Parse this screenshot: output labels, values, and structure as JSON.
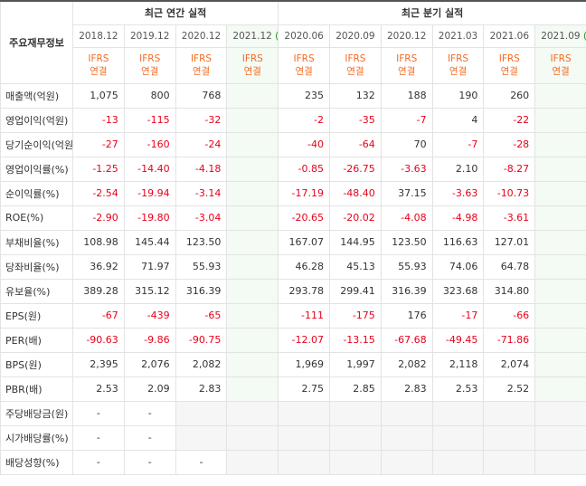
{
  "header": {
    "row_title": "주요재무정보",
    "annual_title": "최근 연간 실적",
    "quarter_title": "최근 분기 실적",
    "periods": [
      "2018.12",
      "2019.12",
      "2020.12",
      "2021.12",
      "2020.06",
      "2020.09",
      "2020.12",
      "2021.03",
      "2021.06",
      "2021.09"
    ],
    "estimate_mark": "(E)",
    "ifrs_line1": "IFRS",
    "ifrs_line2": "연결"
  },
  "rows": [
    {
      "label": "매출액(억원)",
      "values": [
        "1,075",
        "800",
        "768",
        "",
        "235",
        "132",
        "188",
        "190",
        "260",
        ""
      ]
    },
    {
      "label": "영업이익(억원)",
      "values": [
        "-13",
        "-115",
        "-32",
        "",
        "-2",
        "-35",
        "-7",
        "4",
        "-22",
        ""
      ]
    },
    {
      "label": "당기순이익(억원)",
      "values": [
        "-27",
        "-160",
        "-24",
        "",
        "-40",
        "-64",
        "70",
        "-7",
        "-28",
        ""
      ]
    },
    {
      "label": "영업이익률(%)",
      "values": [
        "-1.25",
        "-14.40",
        "-4.18",
        "",
        "-0.85",
        "-26.75",
        "-3.63",
        "2.10",
        "-8.27",
        ""
      ]
    },
    {
      "label": "순이익률(%)",
      "values": [
        "-2.54",
        "-19.94",
        "-3.14",
        "",
        "-17.19",
        "-48.40",
        "37.15",
        "-3.63",
        "-10.73",
        ""
      ]
    },
    {
      "label": "ROE(%)",
      "values": [
        "-2.90",
        "-19.80",
        "-3.04",
        "",
        "-20.65",
        "-20.02",
        "-4.08",
        "-4.98",
        "-3.61",
        ""
      ]
    },
    {
      "label": "부채비율(%)",
      "values": [
        "108.98",
        "145.44",
        "123.50",
        "",
        "167.07",
        "144.95",
        "123.50",
        "116.63",
        "127.01",
        ""
      ]
    },
    {
      "label": "당좌비율(%)",
      "values": [
        "36.92",
        "71.97",
        "55.93",
        "",
        "46.28",
        "45.13",
        "55.93",
        "74.06",
        "64.78",
        ""
      ]
    },
    {
      "label": "유보율(%)",
      "values": [
        "389.28",
        "315.12",
        "316.39",
        "",
        "293.78",
        "299.41",
        "316.39",
        "323.68",
        "314.80",
        ""
      ]
    },
    {
      "label": "EPS(원)",
      "values": [
        "-67",
        "-439",
        "-65",
        "",
        "-111",
        "-175",
        "176",
        "-17",
        "-66",
        ""
      ]
    },
    {
      "label": "PER(배)",
      "values": [
        "-90.63",
        "-9.86",
        "-90.75",
        "",
        "-12.07",
        "-13.15",
        "-67.68",
        "-49.45",
        "-71.86",
        ""
      ]
    },
    {
      "label": "BPS(원)",
      "values": [
        "2,395",
        "2,076",
        "2,082",
        "",
        "1,969",
        "1,997",
        "2,082",
        "2,118",
        "2,074",
        ""
      ]
    },
    {
      "label": "PBR(배)",
      "values": [
        "2.53",
        "2.09",
        "2.83",
        "",
        "2.75",
        "2.85",
        "2.83",
        "2.53",
        "2.52",
        ""
      ]
    },
    {
      "label": "주당배당금(원)",
      "values": [
        "-",
        "-",
        "",
        "",
        "",
        "",
        "",
        "",
        "",
        ""
      ]
    },
    {
      "label": "시가배당률(%)",
      "values": [
        "-",
        "-",
        "",
        "",
        "",
        "",
        "",
        "",
        "",
        ""
      ]
    },
    {
      "label": "배당성향(%)",
      "values": [
        "-",
        "-",
        "-",
        "",
        "",
        "",
        "",
        "",
        "",
        ""
      ]
    }
  ]
}
